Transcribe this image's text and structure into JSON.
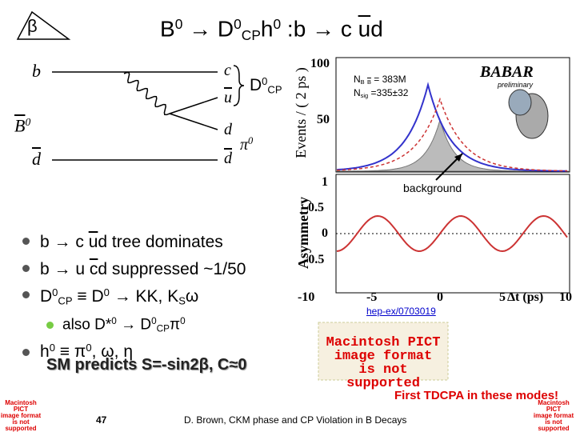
{
  "beta": "β",
  "title": [
    "B",
    "0",
    " → D",
    "0",
    "CP",
    "h",
    "0",
    " :b → c ",
    "u",
    "d"
  ],
  "diagram": {
    "b": "b",
    "B0": [
      "B",
      "0"
    ],
    "dbar_in": "d",
    "c": "c",
    "D0CP": [
      "D",
      "0",
      "CP"
    ],
    "ubar": "u",
    "d": "d",
    "pi0": [
      "π",
      "0"
    ],
    "dbar_out": "d"
  },
  "plot": {
    "ylabel": "Events / ( 2 ps )",
    "yticks": [
      "100",
      "50"
    ],
    "asym_label": "Asymmetry",
    "asym_ticks": [
      "1",
      "0.5",
      "0",
      "-0.5"
    ],
    "xticks": [
      "-10",
      "-5",
      "0",
      "5",
      "10"
    ],
    "xlabel": "Δt (ps)",
    "nbb": [
      "N",
      "B",
      "B",
      " = 383M"
    ],
    "nsig": [
      "N",
      "sig",
      " =335±32"
    ],
    "logo": "BABAR",
    "logo_sub": "preliminary",
    "background": "background"
  },
  "bullets": [
    [
      "b → c ",
      "u",
      "d tree dominates"
    ],
    [
      "b → u ",
      "c",
      "d suppressed ~1/50"
    ],
    [
      "D",
      "0",
      "CP",
      " ≡ D",
      "0",
      " → KK, K",
      "S",
      "ω"
    ],
    [
      "also D*",
      "0",
      " → D",
      "0",
      "CP",
      "π",
      "0"
    ],
    [
      "h",
      "0",
      " ≡ π",
      "0",
      ", ω, η"
    ]
  ],
  "sm": "SM predicts S=-sin2β, C≈0",
  "ref": "hep-ex/0703019",
  "pict": [
    "Macintosh PICT",
    "image format",
    "is not supported"
  ],
  "footer": {
    "note": "First TDCPA in these modes!",
    "page": "47",
    "credit": "D. Brown, CKM phase and CP Violation in B Decays"
  }
}
